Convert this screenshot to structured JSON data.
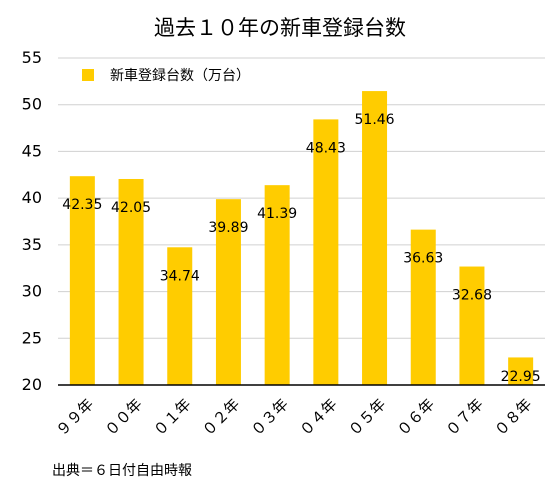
{
  "chart_data": {
    "type": "bar",
    "title": "過去１０年の新車登録台数",
    "categories": [
      "９９年",
      "００年",
      "０１年",
      "０２年",
      "０３年",
      "０４年",
      "０５年",
      "０６年",
      "０７年",
      "０８年"
    ],
    "series": [
      {
        "name": "新車登録台数（万台）",
        "values": [
          42.35,
          42.05,
          34.74,
          39.89,
          41.39,
          48.43,
          51.46,
          36.63,
          32.68,
          22.95
        ]
      }
    ],
    "value_labels": [
      "42.35",
      "42.05",
      "34.74",
      "39.89",
      "41.39",
      "48.43",
      "51.46",
      "36.63",
      "32.68",
      "22.95"
    ],
    "ylim": [
      20,
      55
    ],
    "yticks": [
      "20",
      "25",
      "30",
      "35",
      "40",
      "45",
      "50",
      "55"
    ],
    "grid": true,
    "legend_position": "top-left",
    "bar_color": "#FFCC00",
    "grid_color": "#d0d0d0",
    "axis_color": "#000000"
  },
  "source": "出典＝６日付自由時報"
}
